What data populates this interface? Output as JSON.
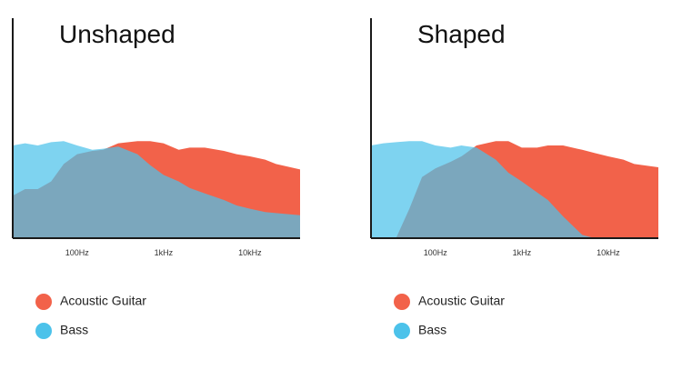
{
  "chart_data": [
    {
      "type": "area",
      "title": "Unshaped",
      "x": [
        18,
        25,
        35,
        50,
        70,
        100,
        150,
        200,
        300,
        500,
        700,
        1000,
        1500,
        2000,
        3000,
        5000,
        7000,
        10000,
        15000,
        20000,
        38000
      ],
      "xlim": [
        18,
        38000
      ],
      "xscale": "log",
      "xticks": [
        {
          "value": 100,
          "label": "100Hz"
        },
        {
          "value": 1000,
          "label": "1kHz"
        },
        {
          "value": 10000,
          "label": "10kHz"
        }
      ],
      "ylim": [
        0,
        100
      ],
      "series": [
        {
          "name": "Acoustic Guitar",
          "color": "#f2624a",
          "values": [
            39,
            45,
            45,
            52,
            68,
            77,
            80,
            81,
            87,
            89,
            89,
            87,
            81,
            83,
            83,
            80,
            77,
            75,
            72,
            68,
            63
          ]
        },
        {
          "name": "Bass",
          "color": "#4cc2ea",
          "values": [
            85,
            87,
            85,
            88,
            89,
            85,
            81,
            82,
            84,
            77,
            67,
            58,
            52,
            46,
            41,
            35,
            30,
            27,
            24,
            23,
            21
          ]
        }
      ]
    },
    {
      "type": "area",
      "title": "Shaped",
      "x": [
        18,
        25,
        35,
        50,
        70,
        100,
        150,
        200,
        300,
        500,
        700,
        1000,
        1500,
        2000,
        3000,
        5000,
        7000,
        10000,
        15000,
        20000,
        38000
      ],
      "xlim": [
        18,
        38000
      ],
      "xscale": "log",
      "xticks": [
        {
          "value": 100,
          "label": "100Hz"
        },
        {
          "value": 1000,
          "label": "1kHz"
        },
        {
          "value": 10000,
          "label": "10kHz"
        }
      ],
      "ylim": [
        0,
        100
      ],
      "series": [
        {
          "name": "Acoustic Guitar",
          "color": "#f2624a",
          "values": [
            0,
            0,
            0,
            27,
            56,
            64,
            70,
            75,
            85,
            89,
            89,
            83,
            83,
            85,
            85,
            81,
            78,
            75,
            72,
            68,
            65
          ]
        },
        {
          "name": "Bass",
          "color": "#4cc2ea",
          "values": [
            85,
            87,
            88,
            89,
            89,
            85,
            83,
            85,
            83,
            72,
            60,
            52,
            42,
            35,
            20,
            3,
            0,
            0,
            0,
            0,
            0
          ]
        }
      ]
    }
  ]
}
